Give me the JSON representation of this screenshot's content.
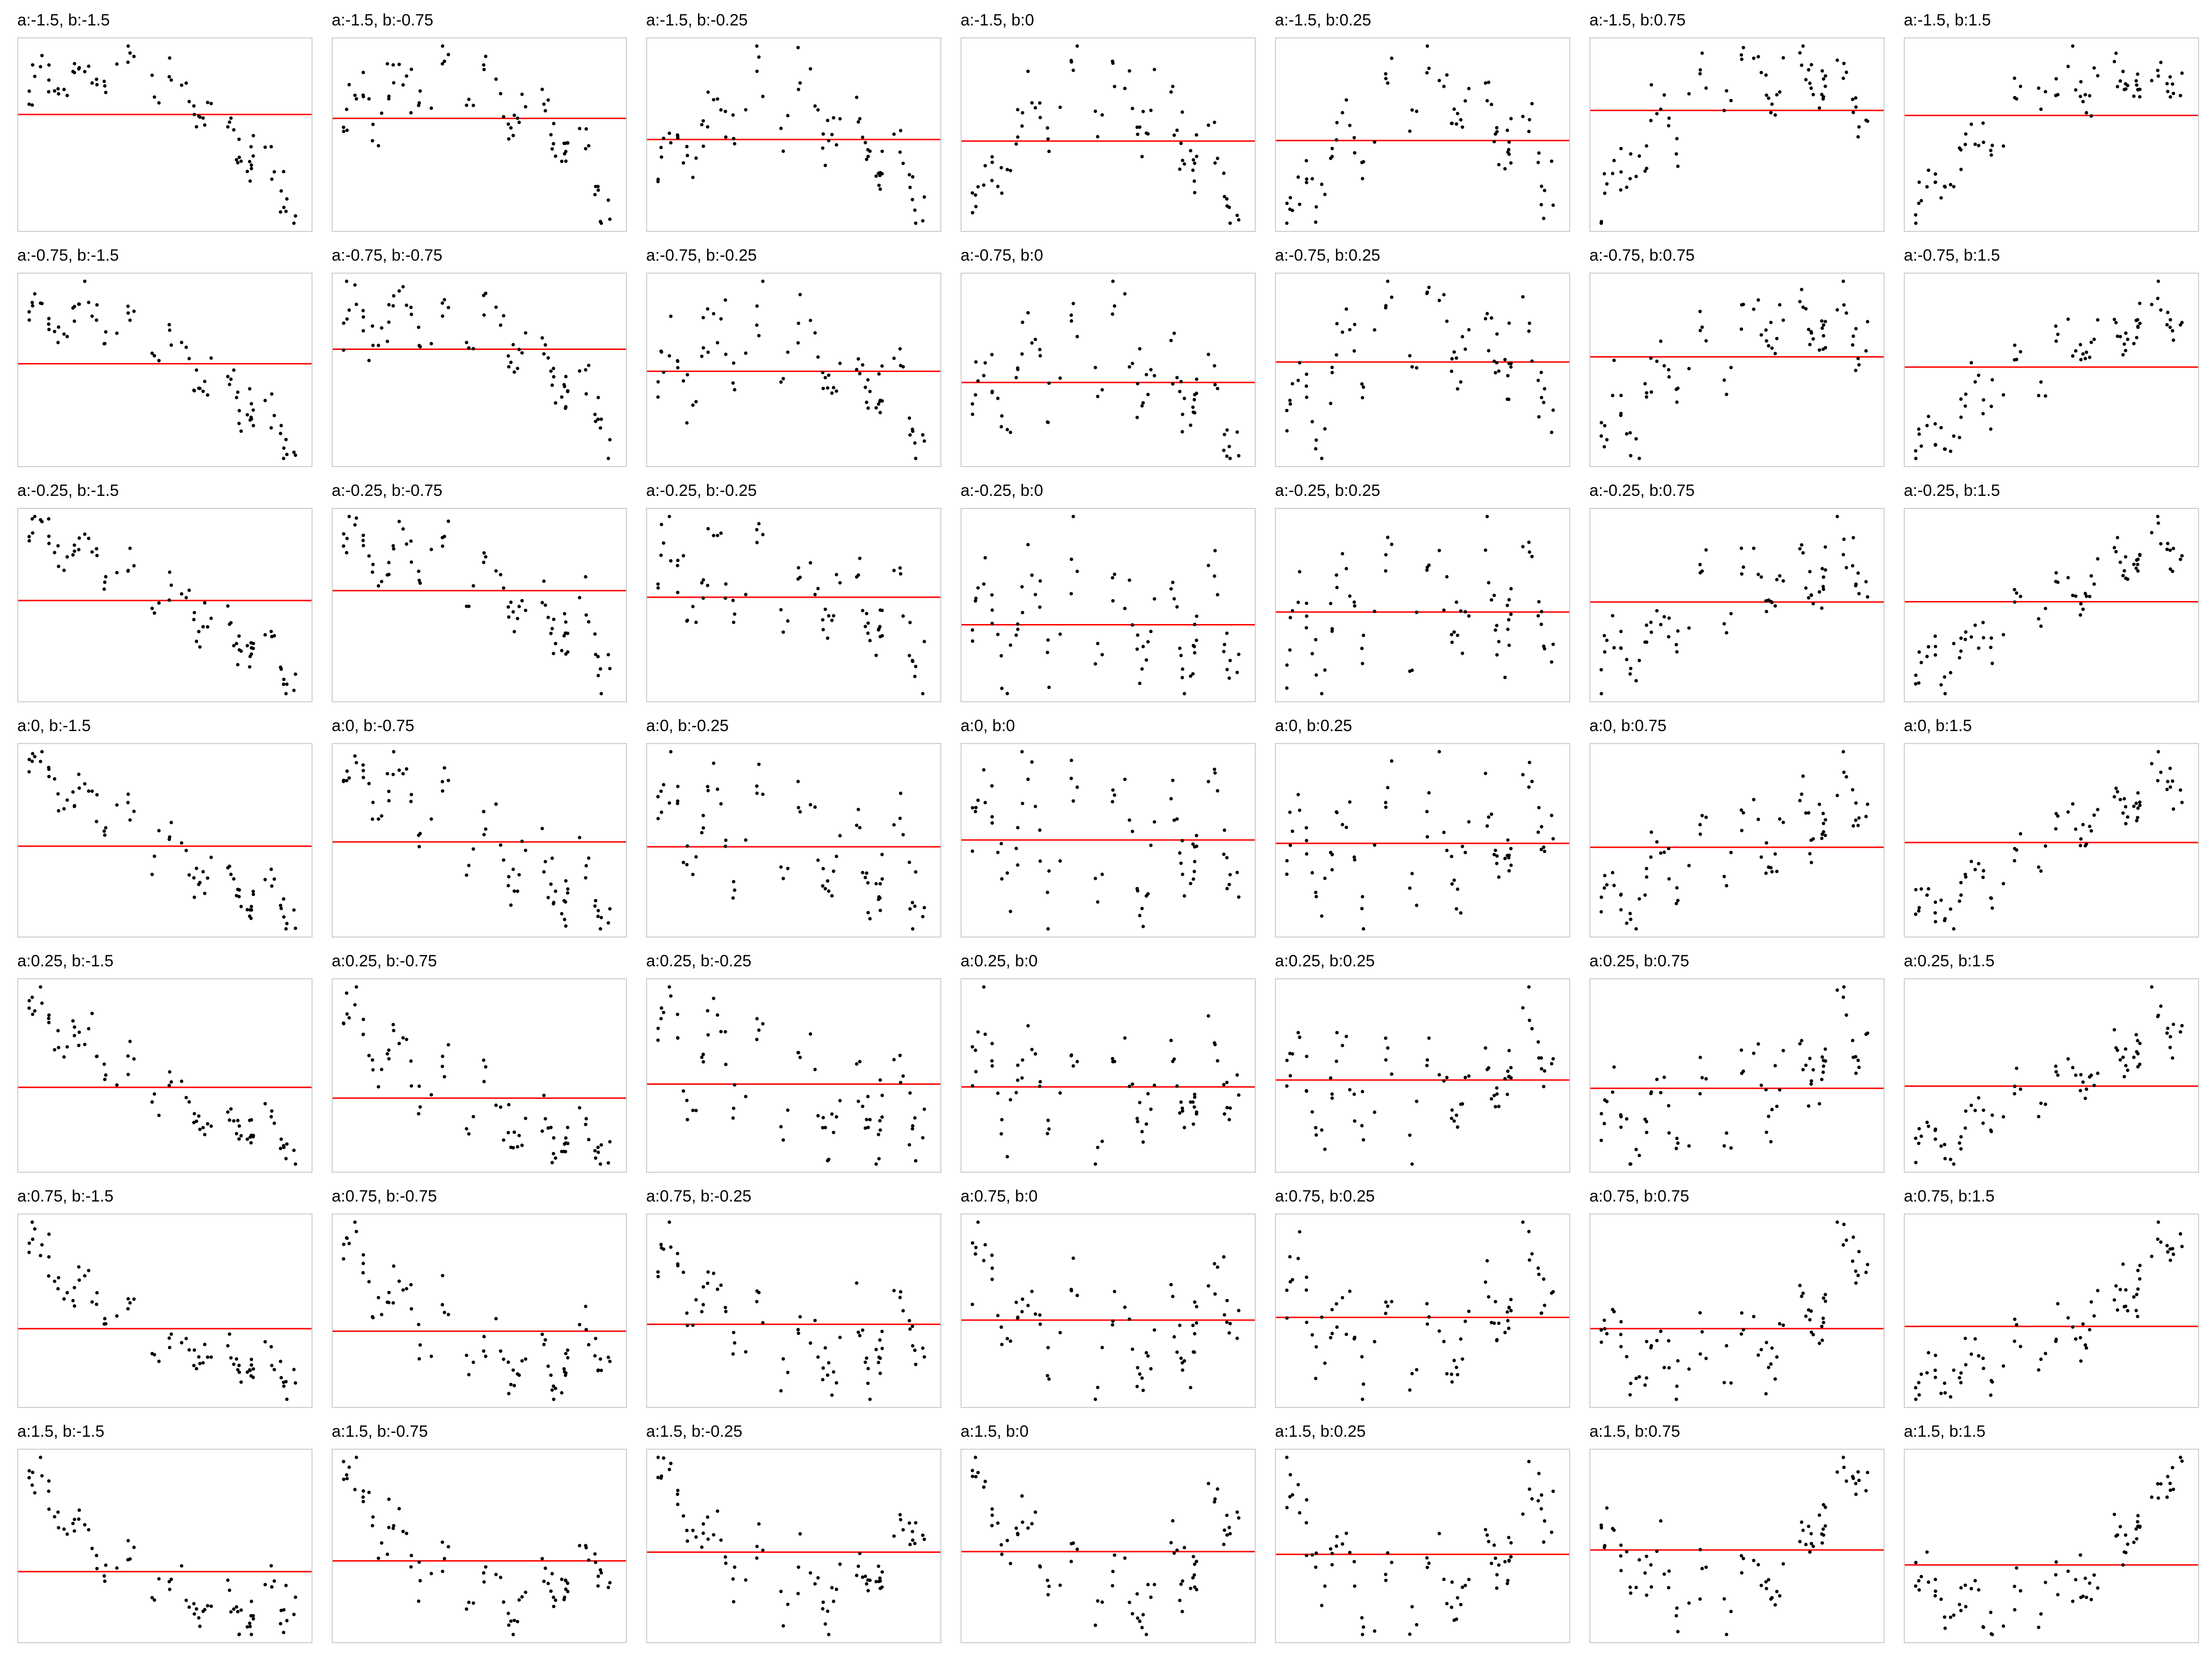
{
  "chart_data": {
    "type": "scatter",
    "layout": "small-multiples grid",
    "rows": 7,
    "columns": 7,
    "row_parameter_a": [
      -1.5,
      -0.75,
      -0.25,
      0,
      0.25,
      0.75,
      1.5
    ],
    "column_parameter_b": [
      -1.5,
      -0.75,
      -0.25,
      0,
      0.25,
      0.75,
      1.5
    ],
    "panel_titles": [
      [
        "a:-1.5, b:-1.5",
        "a:-1.5, b:-0.75",
        "a:-1.5, b:-0.25",
        "a:-1.5, b:0",
        "a:-1.5, b:0.25",
        "a:-1.5, b:0.75",
        "a:-1.5, b:1.5"
      ],
      [
        "a:-0.75, b:-1.5",
        "a:-0.75, b:-0.75",
        "a:-0.75, b:-0.25",
        "a:-0.75, b:0",
        "a:-0.75, b:0.25",
        "a:-0.75, b:0.75",
        "a:-0.75, b:1.5"
      ],
      [
        "a:-0.25, b:-1.5",
        "a:-0.25, b:-0.75",
        "a:-0.25, b:-0.25",
        "a:-0.25, b:0",
        "a:-0.25, b:0.25",
        "a:-0.25, b:0.75",
        "a:-0.25, b:1.5"
      ],
      [
        "a:0, b:-1.5",
        "a:0, b:-0.75",
        "a:0, b:-0.25",
        "a:0, b:0",
        "a:0, b:0.25",
        "a:0, b:0.75",
        "a:0, b:1.5"
      ],
      [
        "a:0.25, b:-1.5",
        "a:0.25, b:-0.75",
        "a:0.25, b:-0.25",
        "a:0.25, b:0",
        "a:0.25, b:0.25",
        "a:0.25, b:0.75",
        "a:0.25, b:1.5"
      ],
      [
        "a:0.75, b:-1.5",
        "a:0.75, b:-0.75",
        "a:0.75, b:-0.25",
        "a:0.75, b:0",
        "a:0.75, b:0.25",
        "a:0.75, b:0.75",
        "a:0.75, b:1.5"
      ],
      [
        "a:1.5, b:-1.5",
        "a:1.5, b:-0.75",
        "a:1.5, b:-0.25",
        "a:1.5, b:0",
        "a:1.5, b:0.25",
        "a:1.5, b:0.75",
        "a:1.5, b:1.5"
      ]
    ],
    "x_range": [
      -1,
      1
    ],
    "points_per_panel": 80,
    "curve_model": "y = a*x^2 + b*x + wave*sin(2*pi*x*3)",
    "axes_visible": false,
    "grid": false,
    "legend": "none",
    "reference_line": "horizontal red line at the mean of y",
    "point_color": "#000000",
    "line_color": "#ff0000",
    "frame_color": "#cccccc"
  }
}
